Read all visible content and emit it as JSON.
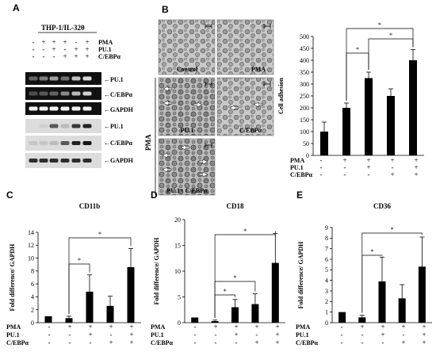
{
  "panel_letters": [
    "A",
    "B",
    "C",
    "D",
    "E"
  ],
  "panelA": {
    "header": "THP-1/IL-32θ",
    "treatments": [
      "PMA",
      "PU.1",
      "C/EBPα"
    ],
    "signs": [
      [
        "-",
        "+",
        "+",
        "+",
        "-",
        "+"
      ],
      [
        "-",
        "-",
        "+",
        "-",
        "+",
        "+"
      ],
      [
        "-",
        "-",
        "-",
        "+",
        "+",
        "+"
      ]
    ],
    "rna_bands": [
      "←PU.1",
      "←C/EBPα",
      "←GAPDH"
    ],
    "protein_bands": [
      "←PU.1",
      "←C/EBPα",
      "←GAPDH"
    ]
  },
  "panelB": {
    "images": [
      "Control",
      "PMA",
      "PU.1",
      "C/EBPα",
      "PU.1+ C/EBPα"
    ],
    "side_label": "PMA"
  },
  "chart_data": [
    {
      "type": "bar",
      "panel": "B",
      "title": "",
      "ylabel": "Cell adhesion",
      "ylim": [
        0,
        500
      ],
      "yticks": [
        0,
        50,
        100,
        150,
        200,
        250,
        300,
        350,
        400,
        450,
        500
      ],
      "categories": [
        "Control",
        "PMA",
        "PMA+PU.1",
        "PMA+C/EBPα",
        "PMA+PU.1+C/EBPα"
      ],
      "values": [
        100,
        200,
        325,
        250,
        400
      ],
      "errors": [
        40,
        20,
        25,
        30,
        45
      ],
      "treatments": [
        "PMA",
        "PU.1",
        "C/EBPα"
      ],
      "signs": [
        [
          "-",
          "+",
          "+",
          "+",
          "+"
        ],
        [
          "-",
          "-",
          "+",
          "-",
          "+"
        ],
        [
          "-",
          "-",
          "-",
          "+",
          "+"
        ]
      ],
      "significance": "*"
    },
    {
      "type": "bar",
      "panel": "C",
      "title": "CD11b",
      "ylabel": "Fold difference/ GAPDH",
      "ylim": [
        0,
        14
      ],
      "yticks": [
        0,
        2,
        4,
        6,
        8,
        10,
        12,
        14
      ],
      "categories": [
        "Control",
        "PMA",
        "PMA+PU.1",
        "PMA+C/EBPα",
        "PMA+PU.1+C/EBPα"
      ],
      "values": [
        1.0,
        0.7,
        4.8,
        2.6,
        8.6
      ],
      "errors": [
        0,
        0.3,
        2.6,
        1.5,
        2.9
      ],
      "treatments": [
        "PMA",
        "PU.1",
        "C/EBPα"
      ],
      "signs": [
        [
          "-",
          "+",
          "+",
          "+",
          "+"
        ],
        [
          "-",
          "-",
          "+",
          "-",
          "+"
        ],
        [
          "-",
          "-",
          "-",
          "+",
          "+"
        ]
      ],
      "significance": "*"
    },
    {
      "type": "bar",
      "panel": "D",
      "title": "CD18",
      "ylabel": "Fold difference/ GAPDH",
      "ylim": [
        0,
        20
      ],
      "yticks": [
        0,
        5,
        10,
        15,
        20
      ],
      "categories": [
        "Control",
        "PMA",
        "PMA+PU.1",
        "PMA+C/EBPα",
        "PMA+PU.1+C/EBPα"
      ],
      "values": [
        1.0,
        0.3,
        3.0,
        3.6,
        11.6
      ],
      "errors": [
        0,
        0.2,
        1.5,
        2.0,
        5.7
      ],
      "treatments": [
        "PMA",
        "PU.1",
        "C/EBPα"
      ],
      "signs": [
        [
          "-",
          "+",
          "+",
          "+",
          "+"
        ],
        [
          "-",
          "-",
          "+",
          "-",
          "+"
        ],
        [
          "-",
          "-",
          "-",
          "+",
          "+"
        ]
      ],
      "significance": "*"
    },
    {
      "type": "bar",
      "panel": "E",
      "title": "CD36",
      "ylabel": "Fold difference/ GAPDH",
      "ylim": [
        0,
        9
      ],
      "yticks": [
        0,
        1,
        2,
        3,
        4,
        5,
        6,
        7,
        8,
        9
      ],
      "categories": [
        "Control",
        "PMA",
        "PMA+PU.1",
        "PMA+C/EBPα",
        "PMA+PU.1+C/EBPα"
      ],
      "values": [
        1.0,
        0.5,
        3.9,
        2.3,
        5.3
      ],
      "errors": [
        0,
        0.2,
        2.3,
        1.3,
        2.8
      ],
      "treatments": [
        "PMA",
        "PU.1",
        "C/EBPα"
      ],
      "signs": [
        [
          "-",
          "+",
          "+",
          "+",
          "+"
        ],
        [
          "-",
          "-",
          "+",
          "-",
          "+"
        ],
        [
          "-",
          "-",
          "-",
          "+",
          "+"
        ]
      ],
      "significance": "*"
    }
  ]
}
